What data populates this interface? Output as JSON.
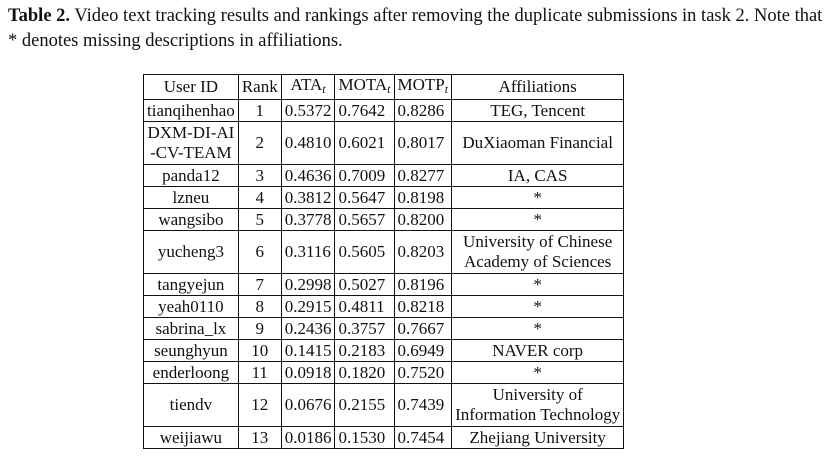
{
  "caption": {
    "label": "Table 2.",
    "text": "Video text tracking results and rankings after removing the duplicate submissions in task 2. Note that * denotes missing descriptions in affiliations."
  },
  "table": {
    "headers": {
      "user_id": "User ID",
      "rank": "Rank",
      "ata": "ATA",
      "ata_sub": "t",
      "mota": "MOTA",
      "mota_sub": "t",
      "motp": "MOTP",
      "motp_sub": "t",
      "affiliations": "Affiliations"
    },
    "rows": [
      {
        "user_id": [
          "tianqihenhao"
        ],
        "rank": "1",
        "ata": "0.5372",
        "mota": "0.7642",
        "motp": "0.8286",
        "affiliation": [
          "TEG, Tencent"
        ]
      },
      {
        "user_id": [
          "DXM-DI-AI",
          "-CV-TEAM"
        ],
        "rank": "2",
        "ata": "0.4810",
        "mota": "0.6021",
        "motp": "0.8017",
        "affiliation": [
          "DuXiaoman Financial"
        ]
      },
      {
        "user_id": [
          "panda12"
        ],
        "rank": "3",
        "ata": "0.4636",
        "mota": "0.7009",
        "motp": "0.8277",
        "affiliation": [
          "IA, CAS"
        ]
      },
      {
        "user_id": [
          "lzneu"
        ],
        "rank": "4",
        "ata": "0.3812",
        "mota": "0.5647",
        "motp": "0.8198",
        "affiliation": [
          "*"
        ]
      },
      {
        "user_id": [
          "wangsibo"
        ],
        "rank": "5",
        "ata": "0.3778",
        "mota": "0.5657",
        "motp": "0.8200",
        "affiliation": [
          "*"
        ]
      },
      {
        "user_id": [
          "yucheng3"
        ],
        "rank": "6",
        "ata": "0.3116",
        "mota": "0.5605",
        "motp": "0.8203",
        "affiliation": [
          "University of Chinese",
          "Academy of Sciences"
        ]
      },
      {
        "user_id": [
          "tangyejun"
        ],
        "rank": "7",
        "ata": "0.2998",
        "mota": "0.5027",
        "motp": "0.8196",
        "affiliation": [
          "*"
        ]
      },
      {
        "user_id": [
          "yeah0110"
        ],
        "rank": "8",
        "ata": "0.2915",
        "mota": "0.4811",
        "motp": "0.8218",
        "affiliation": [
          "*"
        ]
      },
      {
        "user_id": [
          "sabrina_lx"
        ],
        "rank": "9",
        "ata": "0.2436",
        "mota": "0.3757",
        "motp": "0.7667",
        "affiliation": [
          "*"
        ]
      },
      {
        "user_id": [
          "seunghyun"
        ],
        "rank": "10",
        "ata": "0.1415",
        "mota": "0.2183",
        "motp": "0.6949",
        "affiliation": [
          "NAVER corp"
        ]
      },
      {
        "user_id": [
          "enderloong"
        ],
        "rank": "11",
        "ata": "0.0918",
        "mota": "0.1820",
        "motp": "0.7520",
        "affiliation": [
          "*"
        ]
      },
      {
        "user_id": [
          "tiendv"
        ],
        "rank": "12",
        "ata": "0.0676",
        "mota": "0.2155",
        "motp": "0.7439",
        "affiliation": [
          "University of",
          "Information Technology"
        ]
      },
      {
        "user_id": [
          "weijiawu"
        ],
        "rank": "13",
        "ata": "0.0186",
        "mota": "0.1530",
        "motp": "0.7454",
        "affiliation": [
          "Zhejiang University"
        ]
      }
    ]
  }
}
